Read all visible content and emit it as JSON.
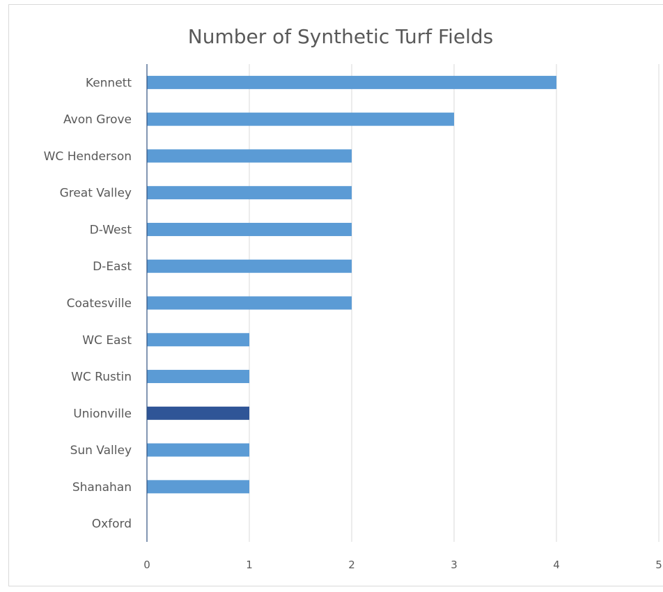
{
  "chart_data": {
    "type": "bar",
    "orientation": "horizontal",
    "title": "Number of Synthetic Turf Fields",
    "xlabel": "",
    "ylabel": "",
    "categories": [
      "Kennett",
      "Avon Grove",
      "WC Henderson",
      "Great Valley",
      "D-West",
      "D-East",
      "Coatesville",
      "WC East",
      "WC Rustin",
      "Unionville",
      "Sun Valley",
      "Shanahan",
      "Oxford"
    ],
    "values": [
      4,
      3,
      2,
      2,
      2,
      2,
      2,
      1,
      1,
      1,
      1,
      1,
      0
    ],
    "xlim": [
      0,
      5
    ],
    "xticks": [
      "0",
      "1",
      "2",
      "3",
      "4",
      "5"
    ],
    "grid": "vertical",
    "legend": "none",
    "colors": {
      "bar": "#5b9bd5",
      "highlight": "#2f5597",
      "highlight_category": "Unionville"
    }
  }
}
